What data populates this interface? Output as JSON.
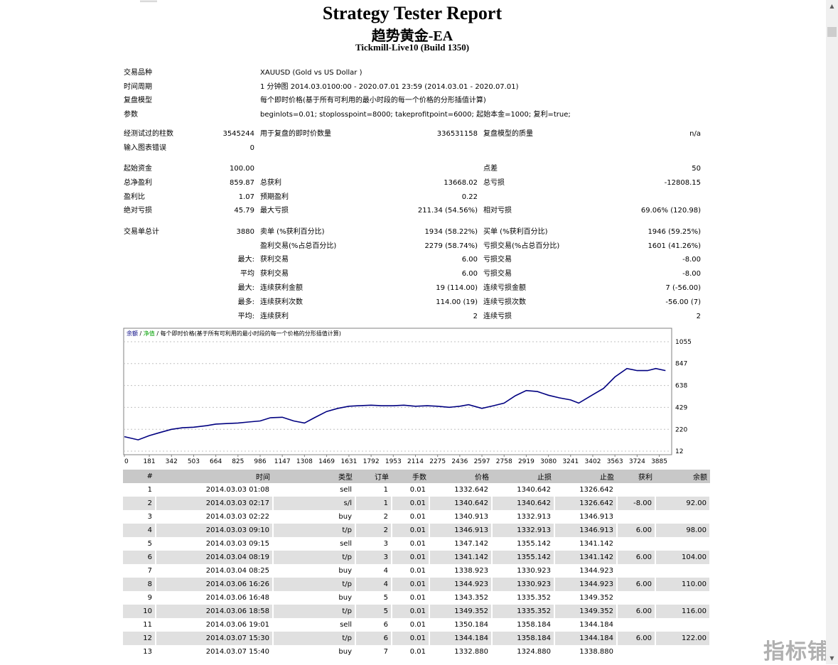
{
  "header": {
    "title": "Strategy Tester Report",
    "ea_name": "趋势黄金-EA",
    "server": "Tickmill-Live10 (Build 1350)"
  },
  "info": [
    {
      "label": "交易品种",
      "value": "XAUUSD (Gold vs US Dollar )"
    },
    {
      "label": "时间周期",
      "value": "1 分钟图 2014.03.0100:00 - 2020.07.01 23:59 (2014.03.01 - 2020.07.01)"
    },
    {
      "label": "复盘模型",
      "value": "每个即时价格(基于所有可利用的最小时段的每一个价格的分形插值计算)"
    },
    {
      "label": "参数",
      "value": "beginlots=0.01; stoplosspoint=8000; takeprofitpoint=6000; 起始本金=1000; 复利=true;"
    }
  ],
  "stats": {
    "bars_label": "经测试过的柱数",
    "bars": "3545244",
    "ticks_label": "用于复盘的即时价数量",
    "ticks": "336531158",
    "quality_label": "复盘模型的质量",
    "quality": "n/a",
    "errors_label": "输入图表错误",
    "errors": "0",
    "deposit_label": "起始资金",
    "deposit": "100.00",
    "spread_label": "点差",
    "spread": "50",
    "net_label": "总净盈利",
    "net": "859.87",
    "gross_profit_label": "总获利",
    "gross_profit": "13668.02",
    "gross_loss_label": "总亏损",
    "gross_loss": "-12808.15",
    "pf_label": "盈利比",
    "pf": "1.07",
    "expected_label": "预期盈利",
    "expected": "0.22",
    "abs_dd_label": "绝对亏损",
    "abs_dd": "45.79",
    "max_dd_label": "最大亏损",
    "max_dd": "211.34 (54.56%)",
    "rel_dd_label": "相对亏损",
    "rel_dd": "69.06% (120.98)",
    "total_label": "交易单总计",
    "total": "3880",
    "short_label": "卖单 (%获利百分比)",
    "short": "1934 (58.22%)",
    "long_label": "买单 (%获利百分比)",
    "long": "1946 (59.25%)",
    "profit_trades_label": "盈利交易(%占总百分比)",
    "profit_trades": "2279 (58.74%)",
    "loss_trades_label": "亏损交易(%占总百分比)",
    "loss_trades": "1601 (41.26%)",
    "largest_pre": "最大:",
    "largest_profit_label": "获利交易",
    "largest_profit": "6.00",
    "largest_loss_label": "亏损交易",
    "largest_loss": "-8.00",
    "average_pre": "平均",
    "avg_profit_label": "获利交易",
    "avg_profit": "6.00",
    "avg_loss_label": "亏损交易",
    "avg_loss": "-8.00",
    "max_pre": "最大:",
    "max_cons_wins_label": "连续获利金额",
    "max_cons_wins": "19 (114.00)",
    "max_cons_losses_label": "连续亏损金额",
    "max_cons_losses": "7 (-56.00)",
    "maximal_pre": "最多:",
    "maximal_cons_profit_label": "连续获利次数",
    "maximal_cons_profit": "114.00 (19)",
    "maximal_cons_loss_label": "连续亏损次数",
    "maximal_cons_loss": "-56.00 (7)",
    "avg_cons_pre": "平均:",
    "avg_cons_wins_label": "连续获利",
    "avg_cons_wins": "2",
    "avg_cons_losses_label": "连续亏损",
    "avg_cons_losses": "2"
  },
  "chart": {
    "legend_balance": "余额",
    "legend_sep1": "/",
    "legend_equity": "净值",
    "legend_sep2": "/",
    "legend_text": "每个即时价格(基于所有可利用的最小时段的每一个价格的分形插值计算)",
    "line_color": "#000080"
  },
  "chart_data": {
    "type": "line",
    "x_ticks": [
      "0",
      "181",
      "342",
      "503",
      "664",
      "825",
      "986",
      "1147",
      "1308",
      "1469",
      "1631",
      "1792",
      "1953",
      "2114",
      "2275",
      "2436",
      "2597",
      "2758",
      "2919",
      "3080",
      "3241",
      "3402",
      "3563",
      "3724",
      "3885"
    ],
    "y_ticks": [
      "1055",
      "847",
      "638",
      "429",
      "220",
      "12"
    ],
    "xlim": [
      0,
      3970
    ],
    "ylim": [
      12,
      1055
    ],
    "series": [
      {
        "x": [
          0,
          100,
          181,
          260,
          342,
          420,
          503,
          600,
          664,
          740,
          825,
          900,
          986,
          1060,
          1147,
          1230,
          1308,
          1380,
          1469,
          1550,
          1631,
          1700,
          1792,
          1870,
          1953,
          2030,
          2114,
          2200,
          2275,
          2360,
          2436,
          2500,
          2597,
          2680,
          2758,
          2840,
          2919,
          3000,
          3080,
          3160,
          3241,
          3300,
          3402,
          3480,
          3563,
          3650,
          3724,
          3800,
          3860,
          3930
        ],
        "y": [
          150,
          120,
          160,
          190,
          220,
          235,
          240,
          255,
          270,
          275,
          280,
          290,
          300,
          330,
          335,
          300,
          280,
          330,
          390,
          420,
          440,
          445,
          450,
          445,
          445,
          450,
          440,
          445,
          440,
          430,
          440,
          455,
          420,
          445,
          470,
          540,
          590,
          580,
          545,
          520,
          500,
          470,
          550,
          610,
          720,
          800,
          780,
          780,
          800,
          780
        ]
      }
    ]
  },
  "table": {
    "headers": [
      "#",
      "时间",
      "类型",
      "订单",
      "手数",
      "价格",
      "止损",
      "止盈",
      "获利",
      "余额"
    ],
    "rows": [
      [
        "1",
        "2014.03.03 01:08",
        "sell",
        "1",
        "0.01",
        "1332.642",
        "1340.642",
        "1326.642",
        "",
        ""
      ],
      [
        "2",
        "2014.03.03 02:17",
        "s/l",
        "1",
        "0.01",
        "1340.642",
        "1340.642",
        "1326.642",
        "-8.00",
        "92.00"
      ],
      [
        "3",
        "2014.03.03 02:22",
        "buy",
        "2",
        "0.01",
        "1340.913",
        "1332.913",
        "1346.913",
        "",
        ""
      ],
      [
        "4",
        "2014.03.03 09:10",
        "t/p",
        "2",
        "0.01",
        "1346.913",
        "1332.913",
        "1346.913",
        "6.00",
        "98.00"
      ],
      [
        "5",
        "2014.03.03 09:15",
        "sell",
        "3",
        "0.01",
        "1347.142",
        "1355.142",
        "1341.142",
        "",
        ""
      ],
      [
        "6",
        "2014.03.04 08:19",
        "t/p",
        "3",
        "0.01",
        "1341.142",
        "1355.142",
        "1341.142",
        "6.00",
        "104.00"
      ],
      [
        "7",
        "2014.03.04 08:25",
        "buy",
        "4",
        "0.01",
        "1338.923",
        "1330.923",
        "1344.923",
        "",
        ""
      ],
      [
        "8",
        "2014.03.06 16:26",
        "t/p",
        "4",
        "0.01",
        "1344.923",
        "1330.923",
        "1344.923",
        "6.00",
        "110.00"
      ],
      [
        "9",
        "2014.03.06 16:48",
        "buy",
        "5",
        "0.01",
        "1343.352",
        "1335.352",
        "1349.352",
        "",
        ""
      ],
      [
        "10",
        "2014.03.06 18:58",
        "t/p",
        "5",
        "0.01",
        "1349.352",
        "1335.352",
        "1349.352",
        "6.00",
        "116.00"
      ],
      [
        "11",
        "2014.03.06 19:01",
        "sell",
        "6",
        "0.01",
        "1350.184",
        "1358.184",
        "1344.184",
        "",
        ""
      ],
      [
        "12",
        "2014.03.07 15:30",
        "t/p",
        "6",
        "0.01",
        "1344.184",
        "1358.184",
        "1344.184",
        "6.00",
        "122.00"
      ],
      [
        "13",
        "2014.03.07 15:40",
        "buy",
        "7",
        "0.01",
        "1332.880",
        "1324.880",
        "1338.880",
        "",
        ""
      ]
    ]
  },
  "watermark": "指标铺",
  "scrollbar": {
    "up_icon": "▲",
    "down_icon": "▼"
  }
}
